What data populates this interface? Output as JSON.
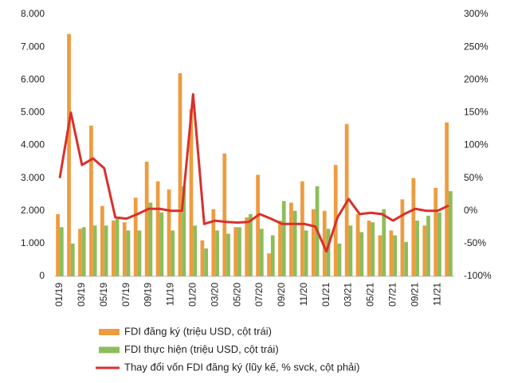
{
  "chart_data": {
    "type": "bar",
    "categories": [
      "01/19",
      null,
      "03/19",
      null,
      "05/19",
      null,
      "07/19",
      null,
      "09/19",
      null,
      "11/19",
      null,
      "01/20",
      null,
      "03/20",
      null,
      "05/20",
      null,
      "07/20",
      null,
      "09/20",
      null,
      "11/20",
      null,
      "01/21",
      null,
      "03/21",
      null,
      "05/21",
      null,
      "07/21",
      null,
      "09/21",
      null,
      "11/21",
      null
    ],
    "series": [
      {
        "name": "FDI đăng ký (triệu USD, cột trái)",
        "color": "#ed9c40",
        "type": "bar",
        "values": [
          1900,
          7400,
          1450,
          4600,
          2150,
          1700,
          1650,
          2400,
          3500,
          2900,
          2650,
          6200,
          5100,
          1100,
          2050,
          3750,
          1500,
          1800,
          3100,
          700,
          1700,
          2250,
          2900,
          2050,
          2000,
          3400,
          4650,
          1900,
          1700,
          1250,
          1400,
          2350,
          3000,
          1550,
          2700,
          4700
        ]
      },
      {
        "name": "FDI thực hiện (triệu USD, cột trái)",
        "color": "#8dbd5a",
        "type": "bar",
        "values": [
          1500,
          1000,
          1500,
          1550,
          1550,
          1750,
          1400,
          1400,
          2250,
          1950,
          1400,
          2750,
          1550,
          850,
          1400,
          1300,
          1500,
          1900,
          1450,
          1250,
          2300,
          2000,
          1400,
          2750,
          1450,
          1000,
          1550,
          1350,
          1650,
          2050,
          1250,
          1050,
          1700,
          1850,
          1950,
          2600
        ]
      },
      {
        "name": "Thay đổi vốn FDI đăng ký (lũy kế, % svck, cột phải)",
        "color": "#d9302c",
        "type": "line",
        "axis": "y2",
        "values": [
          50,
          150,
          70,
          80,
          65,
          -10,
          -12,
          -5,
          3,
          3,
          0,
          0,
          178,
          -20,
          -15,
          -17,
          -18,
          -17,
          -5,
          -12,
          -20,
          -20,
          -20,
          -24,
          -62,
          -10,
          18,
          -5,
          -3,
          -5,
          -15,
          -5,
          3,
          0,
          0,
          8
        ]
      }
    ],
    "ylim": [
      0,
      8000
    ],
    "yticks": [
      0,
      {
        "value": 1000,
        "label": "1.000"
      },
      {
        "value": 2000,
        "label": "2.000"
      },
      {
        "value": 3000,
        "label": "3.000"
      },
      {
        "value": 4000,
        "label": "4.000"
      },
      {
        "value": 5000,
        "label": "5.000"
      },
      {
        "value": 6000,
        "label": "6.000"
      },
      {
        "value": 7000,
        "label": "7.000"
      },
      {
        "value": 8000,
        "label": "8.000"
      }
    ],
    "y2lim": [
      -100,
      300
    ],
    "y2ticks": [
      {
        "value": -100,
        "label": "-100%"
      },
      {
        "value": -50,
        "label": "-50%"
      },
      {
        "value": 0,
        "label": "0%"
      },
      {
        "value": 50,
        "label": "50%"
      },
      {
        "value": 100,
        "label": "100%"
      },
      {
        "value": 150,
        "label": "150%"
      },
      {
        "value": 200,
        "label": "200%"
      },
      {
        "value": 250,
        "label": "250%"
      },
      {
        "value": 300,
        "label": "300%"
      }
    ],
    "legend": "bottom"
  }
}
